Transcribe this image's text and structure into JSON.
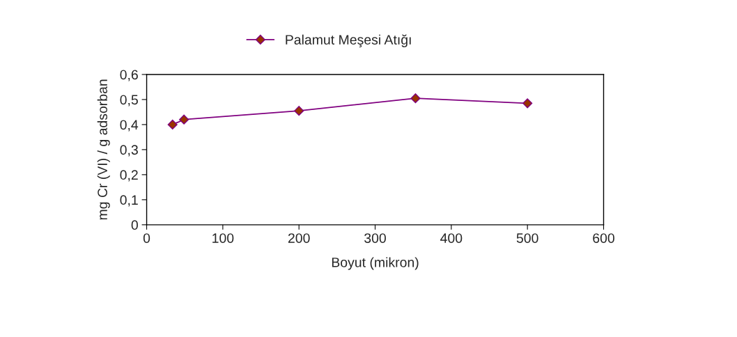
{
  "chart_data": {
    "type": "line",
    "xlabel": "Boyut (mikron)",
    "ylabel": "mg Cr (VI) / g adsorban",
    "series": [
      {
        "name": "Palamut Meşesi Atığı",
        "color": "#800080",
        "x": [
          34,
          49,
          200,
          353,
          500
        ],
        "values": [
          0.4,
          0.42,
          0.455,
          0.505,
          0.485
        ]
      }
    ],
    "xlim": [
      0,
      600
    ],
    "xticks": [
      0,
      100,
      200,
      300,
      400,
      500,
      600
    ],
    "ylim": [
      0,
      0.6
    ],
    "yticks": [
      {
        "value": 0,
        "label": "0"
      },
      {
        "value": 0.1,
        "label": "0,1"
      },
      {
        "value": 0.2,
        "label": "0,2"
      },
      {
        "value": 0.3,
        "label": "0,3"
      },
      {
        "value": 0.4,
        "label": "0,4"
      },
      {
        "value": 0.5,
        "label": "0,5"
      },
      {
        "value": 0.6,
        "label": "0,6"
      }
    ],
    "marker": "diamond",
    "line_style": "solid",
    "grid": false,
    "legend": "top"
  }
}
